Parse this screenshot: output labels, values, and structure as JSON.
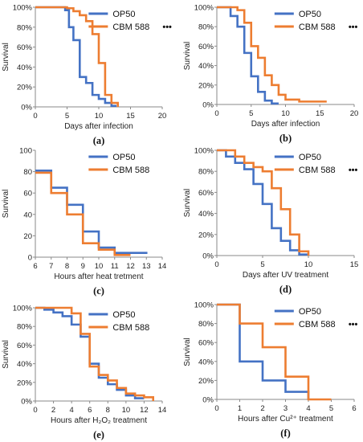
{
  "colors": {
    "OP50": "#4472C4",
    "CBM 588": "#ED7D31"
  },
  "chart_data": [
    {
      "id": "a",
      "panel_label": "(a)",
      "type": "line",
      "step": true,
      "xlabel": "Days after infection",
      "ylabel": "Survival",
      "xlim": [
        0,
        20
      ],
      "xticks": [
        0,
        5,
        10,
        15,
        20
      ],
      "ylim": [
        0,
        100
      ],
      "yticks": [
        "0%",
        "20%",
        "40%",
        "60%",
        "80%",
        "100%"
      ],
      "significance": "•••",
      "legend": [
        "OP50",
        "CBM 588"
      ],
      "series": [
        {
          "name": "OP50",
          "x": [
            0,
            4.7,
            5.3,
            6,
            7,
            8,
            9,
            10,
            11,
            12,
            12.8
          ],
          "y": [
            100,
            97,
            80,
            67,
            30,
            24,
            12,
            8,
            4,
            1,
            1
          ]
        },
        {
          "name": "CBM 588",
          "x": [
            0,
            5,
            6,
            7,
            8,
            9,
            10,
            11,
            12,
            13
          ],
          "y": [
            100,
            99,
            96,
            92,
            86,
            73,
            44,
            12,
            4,
            0
          ]
        }
      ]
    },
    {
      "id": "b",
      "panel_label": "(b)",
      "type": "line",
      "step": true,
      "xlabel": "Days after infection",
      "ylabel": "Survival",
      "xlim": [
        0,
        20
      ],
      "xticks": [
        0,
        5,
        10,
        15,
        20
      ],
      "ylim": [
        0,
        100
      ],
      "yticks": [
        "0%",
        "20%",
        "40%",
        "60%",
        "80%",
        "100%"
      ],
      "significance": "•••",
      "legend": [
        "OP50",
        "CBM 588"
      ],
      "series": [
        {
          "name": "OP50",
          "x": [
            0,
            2,
            3,
            4,
            5,
            6,
            7,
            8,
            9
          ],
          "y": [
            100,
            91,
            80,
            53,
            29,
            13,
            4,
            1,
            1
          ]
        },
        {
          "name": "CBM 588",
          "x": [
            0,
            3,
            4,
            5,
            6,
            7,
            8,
            9,
            10,
            12,
            16
          ],
          "y": [
            100,
            97,
            84,
            60,
            48,
            30,
            20,
            10,
            5,
            3,
            3
          ]
        }
      ]
    },
    {
      "id": "c",
      "panel_label": "(c)",
      "type": "line",
      "step": true,
      "xlabel": "Hours after heat tretment",
      "ylabel": "Survival",
      "xlim": [
        6,
        14
      ],
      "xticks": [
        6,
        7,
        8,
        9,
        10,
        11,
        12,
        13,
        14
      ],
      "ylim": [
        0,
        100
      ],
      "yticks": [
        "0",
        "20",
        "40",
        "60",
        "80",
        "100"
      ],
      "significance": "",
      "legend": [
        "OP50",
        "CBM 588"
      ],
      "series": [
        {
          "name": "OP50",
          "x": [
            6,
            7,
            8,
            9,
            10,
            11,
            12,
            13
          ],
          "y": [
            81,
            65,
            49,
            24,
            9,
            4,
            4,
            3
          ]
        },
        {
          "name": "CBM 588",
          "x": [
            6,
            7,
            8,
            9,
            10,
            11,
            12
          ],
          "y": [
            79,
            60,
            40,
            13,
            7,
            2,
            2
          ]
        }
      ]
    },
    {
      "id": "d",
      "panel_label": "(d)",
      "type": "line",
      "step": true,
      "xlabel": "Days after UV treatment",
      "ylabel": "Survival",
      "xlim": [
        0,
        15
      ],
      "xticks": [
        0,
        5,
        10,
        15
      ],
      "ylim": [
        0,
        100
      ],
      "yticks": [
        "0%",
        "20%",
        "40%",
        "60%",
        "80%",
        "100%"
      ],
      "significance": "•••",
      "legend": [
        "OP50",
        "CBM 588"
      ],
      "series": [
        {
          "name": "OP50",
          "x": [
            0,
            1,
            2,
            3,
            4,
            5,
            6,
            7,
            8,
            9,
            10
          ],
          "y": [
            100,
            94,
            88,
            82,
            68,
            49,
            26,
            14,
            5,
            1,
            1
          ]
        },
        {
          "name": "CBM 588",
          "x": [
            0,
            2,
            3,
            4,
            5,
            6,
            7,
            8,
            9,
            10
          ],
          "y": [
            100,
            94,
            88,
            84,
            80,
            64,
            44,
            20,
            4,
            0
          ]
        }
      ]
    },
    {
      "id": "e",
      "panel_label": "(e)",
      "type": "line",
      "step": true,
      "xlabel": "Hours after H₂O₂ treatment",
      "ylabel": "Survival",
      "xlim": [
        0,
        14
      ],
      "xticks": [
        0,
        2,
        4,
        6,
        8,
        10,
        12,
        14
      ],
      "ylim": [
        0,
        100
      ],
      "yticks": [
        "0%",
        "20%",
        "40%",
        "60%",
        "80%",
        "100%"
      ],
      "significance": "",
      "legend": [
        "OP50",
        "CBM 588"
      ],
      "series": [
        {
          "name": "OP50",
          "x": [
            0,
            1,
            2,
            3,
            4,
            5,
            6,
            7,
            8,
            9,
            10,
            11,
            12
          ],
          "y": [
            100,
            98,
            95,
            91,
            82,
            69,
            40,
            25,
            18,
            12,
            6,
            3,
            3
          ]
        },
        {
          "name": "CBM 588",
          "x": [
            0,
            4,
            5,
            6,
            7,
            8,
            9,
            10,
            11,
            12,
            13
          ],
          "y": [
            100,
            94,
            72,
            37,
            28,
            22,
            14,
            8,
            6,
            4,
            0
          ]
        }
      ]
    },
    {
      "id": "f",
      "panel_label": "(f)",
      "type": "line",
      "step": true,
      "xlabel": "Hours after Cu²⁺  treatment",
      "ylabel": "Survival",
      "xlim": [
        0,
        6
      ],
      "xticks": [
        0,
        1,
        2,
        3,
        4,
        5,
        6
      ],
      "ylim": [
        0,
        100
      ],
      "yticks": [
        "0%",
        "20%",
        "40%",
        "60%",
        "80%",
        "100%"
      ],
      "significance": "•••",
      "legend": [
        "OP50",
        "CBM 588"
      ],
      "series": [
        {
          "name": "OP50",
          "x": [
            0,
            1,
            2,
            3,
            4
          ],
          "y": [
            100,
            40,
            20,
            8,
            0
          ]
        },
        {
          "name": "CBM 588",
          "x": [
            0,
            1,
            2,
            3,
            4,
            5
          ],
          "y": [
            100,
            80,
            55,
            24,
            0,
            0
          ]
        }
      ]
    }
  ]
}
